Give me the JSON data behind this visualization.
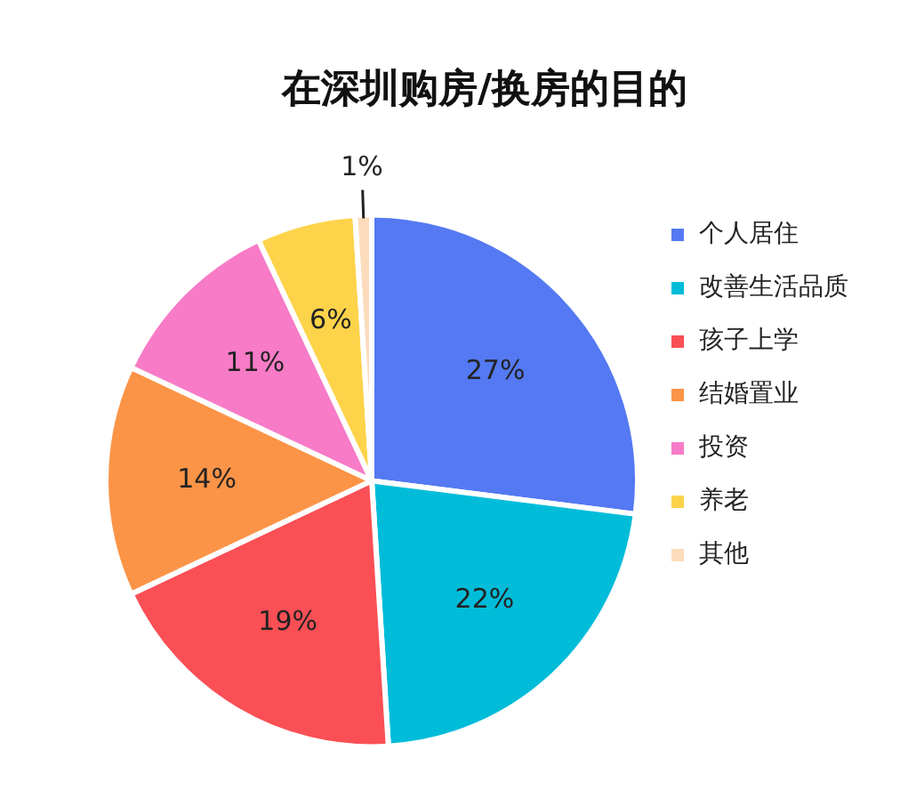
{
  "chart_data": {
    "type": "pie",
    "title": "在深圳购房/换房的目的",
    "categories": [
      "个人居住",
      "改善生活品质",
      "孩子上学",
      "结婚置业",
      "投资",
      "养老",
      "其他"
    ],
    "values": [
      27,
      22,
      19,
      14,
      11,
      6,
      1
    ],
    "colors": [
      "#5479f2",
      "#00bcd9",
      "#fa4f55",
      "#fb9447",
      "#f77bc7",
      "#fdd34a",
      "#fcdcbc"
    ],
    "value_labels": [
      "27%",
      "22%",
      "19%",
      "14%",
      "11%",
      "6%",
      "1%"
    ],
    "legend": "right"
  }
}
